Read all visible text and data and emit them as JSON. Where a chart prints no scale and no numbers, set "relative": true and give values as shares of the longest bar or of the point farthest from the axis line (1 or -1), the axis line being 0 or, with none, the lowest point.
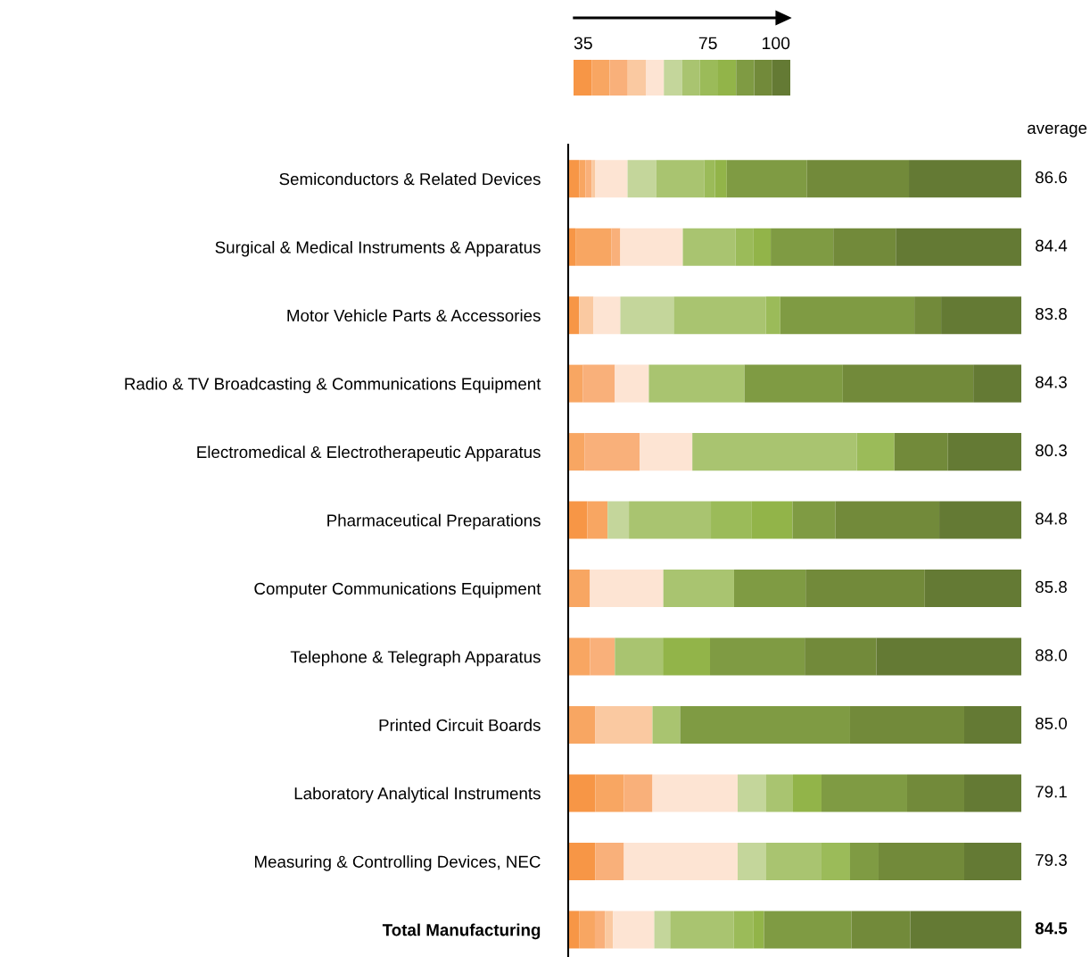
{
  "chart_data": {
    "type": "bar",
    "orientation": "horizontal",
    "stacked": true,
    "relative": true,
    "categories": [
      "Semiconductors & Related Devices",
      "Surgical & Medical Instruments & Apparatus",
      "Motor Vehicle Parts & Accessories",
      "Radio & TV Broadcasting & Communications Equipment",
      "Electromedical & Electrotherapeutic Apparatus",
      "Pharmaceutical Preparations",
      "Computer Communications Equipment",
      "Telephone & Telegraph Apparatus",
      "Printed Circuit Boards",
      "Laboratory Analytical Instruments",
      "Measuring & Controlling Devices, NEC",
      "Total Manufacturing"
    ],
    "series": [
      {
        "color": "#f79646",
        "values": [
          0.024,
          0.016,
          0.024,
          null,
          null,
          0.042,
          null,
          null,
          null,
          0.06,
          0.06,
          0.024
        ]
      },
      {
        "color": "#f8a662",
        "values": [
          0.014,
          0.079,
          null,
          0.032,
          0.036,
          0.045,
          0.048,
          0.048,
          0.06,
          0.063,
          null,
          0.035
        ]
      },
      {
        "color": "#f9b07a",
        "values": [
          0.014,
          0.02,
          null,
          0.071,
          0.122,
          null,
          null,
          0.055,
          null,
          0.063,
          0.063,
          0.022
        ]
      },
      {
        "color": "#fac9a1",
        "values": [
          0.008,
          null,
          0.032,
          null,
          null,
          null,
          null,
          null,
          0.126,
          null,
          null,
          0.018
        ]
      },
      {
        "color": "#fde4d3",
        "values": [
          0.071,
          0.138,
          0.059,
          0.075,
          0.116,
          null,
          0.162,
          null,
          null,
          0.188,
          0.251,
          0.091
        ]
      },
      {
        "color": "#c4d69b",
        "values": [
          0.063,
          null,
          0.118,
          null,
          null,
          0.047,
          null,
          null,
          null,
          0.063,
          0.063,
          0.035
        ]
      },
      {
        "color": "#a9c470",
        "values": [
          0.106,
          0.116,
          0.203,
          0.211,
          0.363,
          0.181,
          0.156,
          0.106,
          0.061,
          0.059,
          0.122,
          0.14
        ]
      },
      {
        "color": "#9bbb59",
        "values": [
          0.024,
          0.039,
          0.032,
          null,
          0.083,
          0.089,
          null,
          null,
          null,
          null,
          0.063,
          0.043
        ]
      },
      {
        "color": "#92b449",
        "values": [
          0.026,
          0.039,
          null,
          null,
          null,
          0.091,
          null,
          0.104,
          null,
          0.063,
          null,
          0.024
        ]
      },
      {
        "color": "#7f9b43",
        "values": [
          0.177,
          0.138,
          0.296,
          0.217,
          null,
          0.095,
          0.158,
          0.209,
          0.375,
          0.189,
          0.063,
          0.193
        ]
      },
      {
        "color": "#728a3a",
        "values": [
          0.225,
          0.138,
          0.059,
          0.288,
          0.118,
          0.229,
          0.263,
          0.158,
          0.252,
          0.126,
          0.189,
          0.13
        ]
      },
      {
        "color": "#647a34",
        "values": [
          0.248,
          0.277,
          0.177,
          0.106,
          0.162,
          0.181,
          0.213,
          0.32,
          0.126,
          0.126,
          0.126,
          0.245
        ]
      }
    ],
    "annotations": [
      "average",
      "86.6",
      "84.4",
      "83.8",
      "84.3",
      "80.3",
      "84.8",
      "85.8",
      "88.0",
      "85.0",
      "79.1",
      "79.3",
      "84.5",
      "35",
      "75",
      "100"
    ]
  }
}
